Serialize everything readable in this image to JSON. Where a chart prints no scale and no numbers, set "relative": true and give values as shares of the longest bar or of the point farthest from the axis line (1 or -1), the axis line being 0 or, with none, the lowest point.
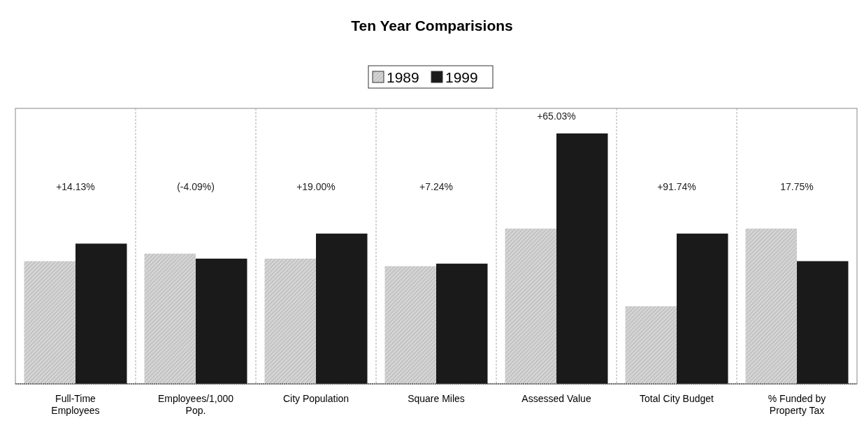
{
  "chart_data": {
    "type": "bar",
    "title": "Ten Year Comparisions",
    "relative": true,
    "legend": "top",
    "grid": "x",
    "categories": [
      "Full-Time Employees",
      "Employees/1,000 Pop.",
      "City Population",
      "Square Miles",
      "Assessed Value",
      "Total City Budget",
      "% Funded by Property Tax"
    ],
    "series": [
      {
        "name": "1989",
        "color": "#d4d4d4",
        "values": [
          0.49,
          0.52,
          0.5,
          0.47,
          0.62,
          0.31,
          0.62
        ]
      },
      {
        "name": "1999",
        "color": "#1a1a1a",
        "values": [
          0.56,
          0.5,
          0.6,
          0.48,
          1,
          0.6,
          0.49
        ]
      }
    ],
    "annotations": [
      "+14.13%",
      "(-4.09%)",
      "+19.00%",
      "+7.24%",
      "+65.03%",
      "+91.74%",
      "17.75%"
    ]
  }
}
